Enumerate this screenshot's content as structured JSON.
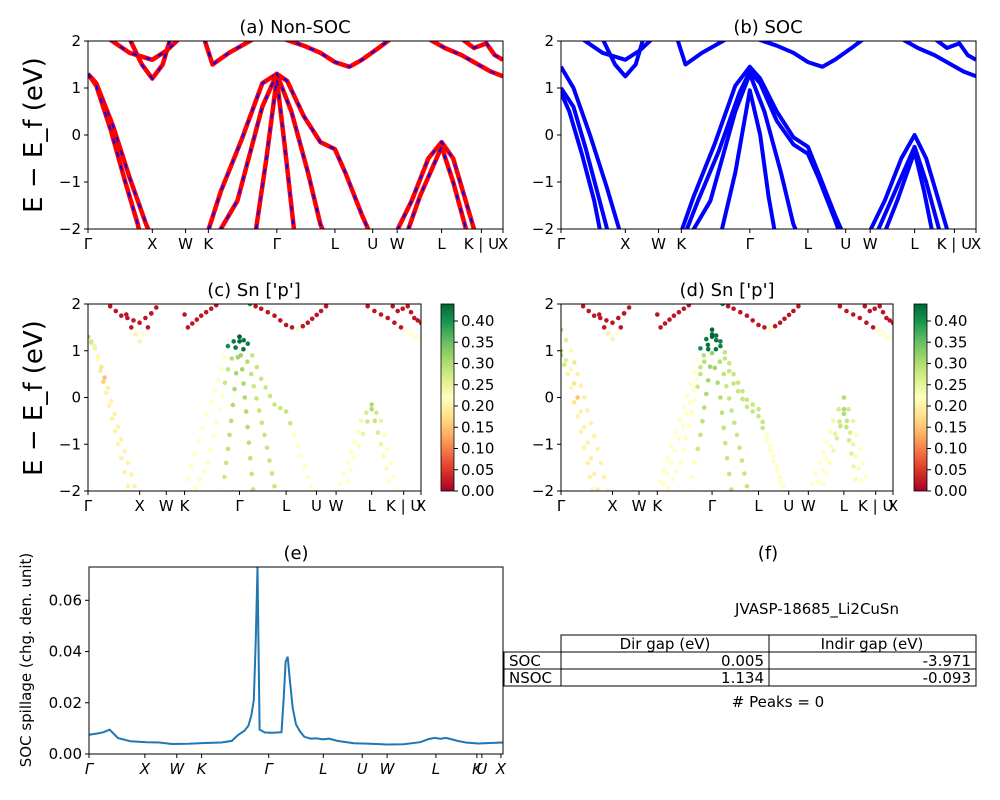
{
  "chart_data": [
    {
      "id": "a",
      "type": "line",
      "title": "(a) Non-SOC",
      "ylabel": "E − E_f (eV)",
      "ylim": [
        -2,
        2
      ],
      "yticks": [
        "−2",
        "−1",
        "0",
        "1",
        "2"
      ],
      "kpath": [
        {
          "label": "Γ",
          "pos": 0.0
        },
        {
          "label": "X",
          "pos": 0.155
        },
        {
          "label": "W",
          "pos": 0.235
        },
        {
          "label": "K",
          "pos": 0.29
        },
        {
          "label": "Γ",
          "pos": 0.455
        },
        {
          "label": "L",
          "pos": 0.595
        },
        {
          "label": "U",
          "pos": 0.686
        },
        {
          "label": "W",
          "pos": 0.745
        },
        {
          "label": "L",
          "pos": 0.852
        },
        {
          "label": "K | U",
          "pos": 0.948
        },
        {
          "label": "X",
          "pos": 1.0
        }
      ],
      "colors": {
        "line": "#ff0000",
        "dash": "#0000ff"
      }
    },
    {
      "id": "b",
      "type": "line",
      "title": "(b) SOC",
      "ylim": [
        -2,
        2
      ],
      "yticks": [
        "−2",
        "−1",
        "0",
        "1",
        "2"
      ],
      "kpath": [
        {
          "label": "Γ",
          "pos": 0.0
        },
        {
          "label": "X",
          "pos": 0.155
        },
        {
          "label": "W",
          "pos": 0.235
        },
        {
          "label": "K",
          "pos": 0.29
        },
        {
          "label": "Γ",
          "pos": 0.455
        },
        {
          "label": "L",
          "pos": 0.595
        },
        {
          "label": "U",
          "pos": 0.686
        },
        {
          "label": "W",
          "pos": 0.745
        },
        {
          "label": "L",
          "pos": 0.852
        },
        {
          "label": "K | U",
          "pos": 0.948
        },
        {
          "label": "X",
          "pos": 1.0
        }
      ],
      "colors": {
        "line": "#0000ff"
      }
    },
    {
      "id": "c",
      "type": "scatter",
      "title": "(c)  Sn ['p']",
      "ylabel": "E − E_f (eV)",
      "ylim": [
        -2,
        2
      ],
      "yticks": [
        "−2",
        "−1",
        "0",
        "1",
        "2"
      ],
      "kpath": [
        {
          "label": "Γ",
          "pos": 0.0
        },
        {
          "label": "X",
          "pos": 0.155
        },
        {
          "label": "W",
          "pos": 0.235
        },
        {
          "label": "K",
          "pos": 0.29
        },
        {
          "label": "Γ",
          "pos": 0.455
        },
        {
          "label": "L",
          "pos": 0.595
        },
        {
          "label": "U",
          "pos": 0.686
        },
        {
          "label": "W",
          "pos": 0.745
        },
        {
          "label": "L",
          "pos": 0.852
        },
        {
          "label": "K | U",
          "pos": 0.948
        },
        {
          "label": "X",
          "pos": 1.0
        }
      ],
      "colorbar": {
        "ticks": [
          "0.00",
          "0.05",
          "0.10",
          "0.15",
          "0.20",
          "0.25",
          "0.30",
          "0.35",
          "0.40"
        ],
        "max": 0.44,
        "colormap": "RdYlGn"
      }
    },
    {
      "id": "d",
      "type": "scatter",
      "title": "(d) Sn ['p']",
      "ylim": [
        -2,
        2
      ],
      "yticks": [
        "−2",
        "−1",
        "0",
        "1",
        "2"
      ],
      "kpath": [
        {
          "label": "Γ",
          "pos": 0.0
        },
        {
          "label": "X",
          "pos": 0.155
        },
        {
          "label": "W",
          "pos": 0.235
        },
        {
          "label": "K",
          "pos": 0.29
        },
        {
          "label": "Γ",
          "pos": 0.455
        },
        {
          "label": "L",
          "pos": 0.595
        },
        {
          "label": "U",
          "pos": 0.686
        },
        {
          "label": "W",
          "pos": 0.745
        },
        {
          "label": "L",
          "pos": 0.852
        },
        {
          "label": "K | U",
          "pos": 0.948
        },
        {
          "label": "X",
          "pos": 1.0
        }
      ],
      "colorbar": {
        "ticks": [
          "0.00",
          "0.05",
          "0.10",
          "0.15",
          "0.20",
          "0.25",
          "0.30",
          "0.35",
          "0.40"
        ],
        "max": 0.44,
        "colormap": "RdYlGn"
      }
    },
    {
      "id": "e",
      "type": "line",
      "title": "(e)",
      "ylabel": "SOC spillage (chg. den. unit)",
      "ylim": [
        0,
        0.073
      ],
      "yticks": [
        {
          "label": "0.00",
          "v": 0.0
        },
        {
          "label": "0.02",
          "v": 0.02
        },
        {
          "label": "0.04",
          "v": 0.04
        },
        {
          "label": "0.06",
          "v": 0.06
        }
      ],
      "kpath": [
        {
          "label": "Γ",
          "pos": 0.0
        },
        {
          "label": "X",
          "pos": 0.135
        },
        {
          "label": "W",
          "pos": 0.212
        },
        {
          "label": "K",
          "pos": 0.272
        },
        {
          "label": "Γ",
          "pos": 0.434
        },
        {
          "label": "L",
          "pos": 0.566
        },
        {
          "label": "U",
          "pos": 0.66
        },
        {
          "label": "W",
          "pos": 0.72
        },
        {
          "label": "L",
          "pos": 0.838
        },
        {
          "label": "K",
          "pos": 0.937
        },
        {
          "label": "U",
          "pos": 0.949
        },
        {
          "label": "X",
          "pos": 0.995
        }
      ],
      "x": [
        0.0,
        0.02,
        0.035,
        0.05,
        0.07,
        0.1,
        0.14,
        0.17,
        0.2,
        0.24,
        0.28,
        0.32,
        0.345,
        0.36,
        0.375,
        0.385,
        0.392,
        0.398,
        0.403,
        0.407,
        0.412,
        0.425,
        0.44,
        0.455,
        0.465,
        0.47,
        0.475,
        0.48,
        0.485,
        0.492,
        0.5,
        0.51,
        0.52,
        0.535,
        0.55,
        0.565,
        0.58,
        0.6,
        0.64,
        0.68,
        0.72,
        0.76,
        0.8,
        0.82,
        0.835,
        0.85,
        0.86,
        0.87,
        0.89,
        0.91,
        0.94,
        0.97,
        1.0
      ],
      "y": [
        0.0075,
        0.008,
        0.0085,
        0.0095,
        0.0062,
        0.005,
        0.0046,
        0.0045,
        0.0039,
        0.004,
        0.0043,
        0.0045,
        0.0051,
        0.0074,
        0.009,
        0.011,
        0.015,
        0.021,
        0.045,
        0.073,
        0.0095,
        0.0084,
        0.0083,
        0.0084,
        0.0085,
        0.021,
        0.036,
        0.038,
        0.029,
        0.018,
        0.0115,
        0.0088,
        0.0067,
        0.006,
        0.0061,
        0.0057,
        0.006,
        0.0051,
        0.0042,
        0.004,
        0.0037,
        0.0038,
        0.0046,
        0.0058,
        0.0063,
        0.0059,
        0.0063,
        0.006,
        0.0051,
        0.0045,
        0.0041,
        0.0043,
        0.0045
      ],
      "colors": {
        "line": "#1f77b4"
      }
    }
  ],
  "panel_f": {
    "title": "(f)",
    "material": "JVASP-18685_Li2CuSn",
    "table": {
      "headers": [
        "Dir gap (eV)",
        "Indir gap (eV)"
      ],
      "rows": [
        {
          "label": "SOC",
          "dir": "0.005",
          "indir": "-3.971"
        },
        {
          "label": "NSOC",
          "dir": "1.134",
          "indir": "-0.093"
        }
      ]
    },
    "peaks": "# Peaks = 0"
  }
}
